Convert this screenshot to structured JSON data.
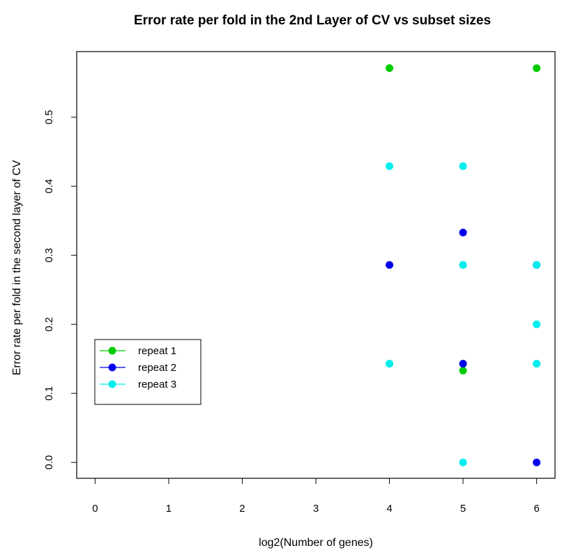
{
  "chart_data": {
    "type": "scatter",
    "title": "Error rate per fold in the 2nd Layer of CV  vs subset sizes",
    "xlabel": "log2(Number of genes)",
    "ylabel": "Error rate per fold in the second layer of CV",
    "xlim": [
      -0.25,
      6.25
    ],
    "ylim": [
      -0.023,
      0.595
    ],
    "x_ticks": [
      0,
      1,
      2,
      3,
      4,
      5,
      6
    ],
    "x_tick_labels": [
      "0",
      "1",
      "2",
      "3",
      "4",
      "5",
      "6"
    ],
    "y_ticks": [
      0.0,
      0.1,
      0.2,
      0.3,
      0.4,
      0.5
    ],
    "y_tick_labels": [
      "0.0",
      "0.1",
      "0.2",
      "0.3",
      "0.4",
      "0.5"
    ],
    "grid": false,
    "legend_position": "left-middle",
    "series": [
      {
        "name": "repeat 1",
        "color": "#00cd00",
        "points": [
          {
            "x": 4,
            "y": 0.571
          },
          {
            "x": 4,
            "y": 0.143
          },
          {
            "x": 5,
            "y": 0.133
          },
          {
            "x": 5,
            "y": 0.286
          },
          {
            "x": 6,
            "y": 0.571
          }
        ]
      },
      {
        "name": "repeat 2",
        "color": "#0000ee",
        "points": [
          {
            "x": 4,
            "y": 0.286
          },
          {
            "x": 5,
            "y": 0.333
          },
          {
            "x": 5,
            "y": 0.143
          },
          {
            "x": 6,
            "y": 0.286
          },
          {
            "x": 6,
            "y": 0.0
          }
        ]
      },
      {
        "name": "repeat 3",
        "color": "#00eeee",
        "points": [
          {
            "x": 4,
            "y": 0.429
          },
          {
            "x": 4,
            "y": 0.143
          },
          {
            "x": 5,
            "y": 0.429
          },
          {
            "x": 5,
            "y": 0.286
          },
          {
            "x": 5,
            "y": 0.0
          },
          {
            "x": 6,
            "y": 0.286
          },
          {
            "x": 6,
            "y": 0.2
          },
          {
            "x": 6,
            "y": 0.143
          }
        ]
      }
    ]
  }
}
